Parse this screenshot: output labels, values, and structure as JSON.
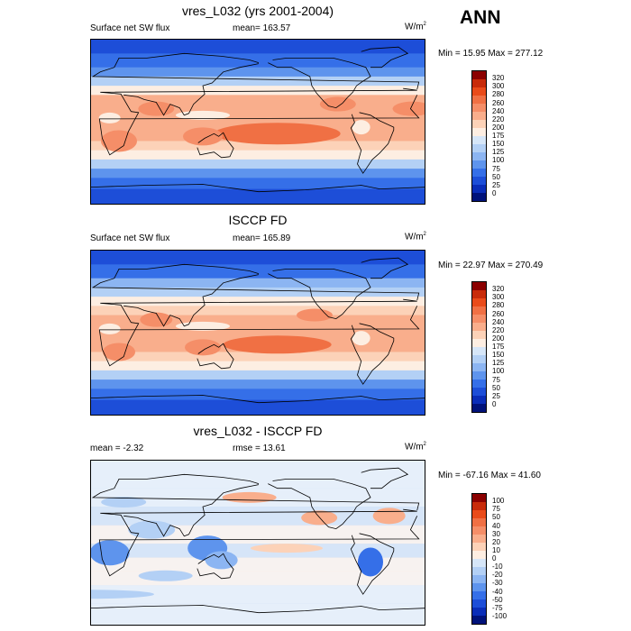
{
  "season": "ANN",
  "panels": [
    {
      "title": "vres_L032 (yrs 2001-2004)",
      "left_label": "Surface net SW flux",
      "center_label": "mean= 163.57",
      "units": "W/m",
      "units_sup": "2",
      "minmax": "Min =  15.95 Max = 277.12",
      "colorbar": {
        "levels": [
          "320",
          "300",
          "280",
          "260",
          "240",
          "220",
          "200",
          "175",
          "150",
          "125",
          "100",
          "75",
          "50",
          "25",
          "0"
        ],
        "colors": [
          "#8b0000",
          "#c82b0a",
          "#e94b1a",
          "#f07044",
          "#f58e68",
          "#f9ae8c",
          "#fcd2b8",
          "#fdeee2",
          "#d6e6f8",
          "#b3d0f5",
          "#8cb5f2",
          "#5e94ed",
          "#356fe8",
          "#1d4ed8",
          "#0a2db8",
          "#00127a"
        ]
      }
    },
    {
      "title": "ISCCP FD",
      "left_label": "Surface net SW flux",
      "center_label": "mean= 165.89",
      "units": "W/m",
      "units_sup": "2",
      "minmax": "Min =  22.97 Max = 270.49",
      "colorbar": {
        "levels": [
          "320",
          "300",
          "280",
          "260",
          "240",
          "220",
          "200",
          "175",
          "150",
          "125",
          "100",
          "75",
          "50",
          "25",
          "0"
        ],
        "colors": [
          "#8b0000",
          "#c82b0a",
          "#e94b1a",
          "#f07044",
          "#f58e68",
          "#f9ae8c",
          "#fcd2b8",
          "#fdeee2",
          "#d6e6f8",
          "#b3d0f5",
          "#8cb5f2",
          "#5e94ed",
          "#356fe8",
          "#1d4ed8",
          "#0a2db8",
          "#00127a"
        ]
      }
    },
    {
      "title": "vres_L032 - ISCCP FD",
      "left_label": "mean =  -2.32",
      "center_label": "rmse =  13.61",
      "units": "W/m",
      "units_sup": "2",
      "minmax": "Min = -67.16 Max =  41.60",
      "colorbar": {
        "levels": [
          "100",
          "75",
          "50",
          "40",
          "30",
          "20",
          "10",
          "0",
          "-10",
          "-20",
          "-30",
          "-40",
          "-50",
          "-75",
          "-100"
        ],
        "colors": [
          "#8b0000",
          "#c82b0a",
          "#e94b1a",
          "#f07044",
          "#f58e68",
          "#f9ae8c",
          "#fcd2b8",
          "#fdeee2",
          "#d6e6f8",
          "#b3d0f5",
          "#8cb5f2",
          "#5e94ed",
          "#356fe8",
          "#1d4ed8",
          "#0a2db8",
          "#00127a"
        ]
      }
    }
  ],
  "chart_data": [
    {
      "type": "heatmap",
      "title": "vres_L032 (yrs 2001-2004)",
      "variable": "Surface net SW flux",
      "units": "W/m2",
      "mean": 163.57,
      "min": 15.95,
      "max": 277.12,
      "colorbar_levels": [
        0,
        25,
        50,
        75,
        100,
        125,
        150,
        175,
        200,
        220,
        240,
        260,
        280,
        300,
        320
      ],
      "zonal_profile_approx": {
        "lat": [
          90,
          70,
          50,
          30,
          10,
          -10,
          -30,
          -50,
          -70,
          -90
        ],
        "value": [
          40,
          65,
          110,
          215,
          230,
          235,
          205,
          110,
          60,
          25
        ]
      }
    },
    {
      "type": "heatmap",
      "title": "ISCCP FD",
      "variable": "Surface net SW flux",
      "units": "W/m2",
      "mean": 165.89,
      "min": 22.97,
      "max": 270.49,
      "colorbar_levels": [
        0,
        25,
        50,
        75,
        100,
        125,
        150,
        175,
        200,
        220,
        240,
        260,
        280,
        300,
        320
      ],
      "zonal_profile_approx": {
        "lat": [
          90,
          70,
          50,
          30,
          10,
          -10,
          -30,
          -50,
          -70,
          -90
        ],
        "value": [
          45,
          70,
          115,
          210,
          225,
          235,
          205,
          115,
          65,
          30
        ]
      }
    },
    {
      "type": "heatmap",
      "title": "vres_L032 - ISCCP FD",
      "units": "W/m2",
      "mean": -2.32,
      "rmse": 13.61,
      "min": -67.16,
      "max": 41.6,
      "colorbar_levels": [
        -100,
        -75,
        -50,
        -40,
        -30,
        -20,
        -10,
        0,
        10,
        20,
        30,
        40,
        50,
        75,
        100
      ],
      "zonal_profile_approx": {
        "lat": [
          90,
          70,
          50,
          30,
          10,
          -10,
          -30,
          -50,
          -70,
          -90
        ],
        "value": [
          -5,
          -8,
          -5,
          5,
          -10,
          -5,
          5,
          -5,
          -3,
          -2
        ]
      }
    }
  ]
}
